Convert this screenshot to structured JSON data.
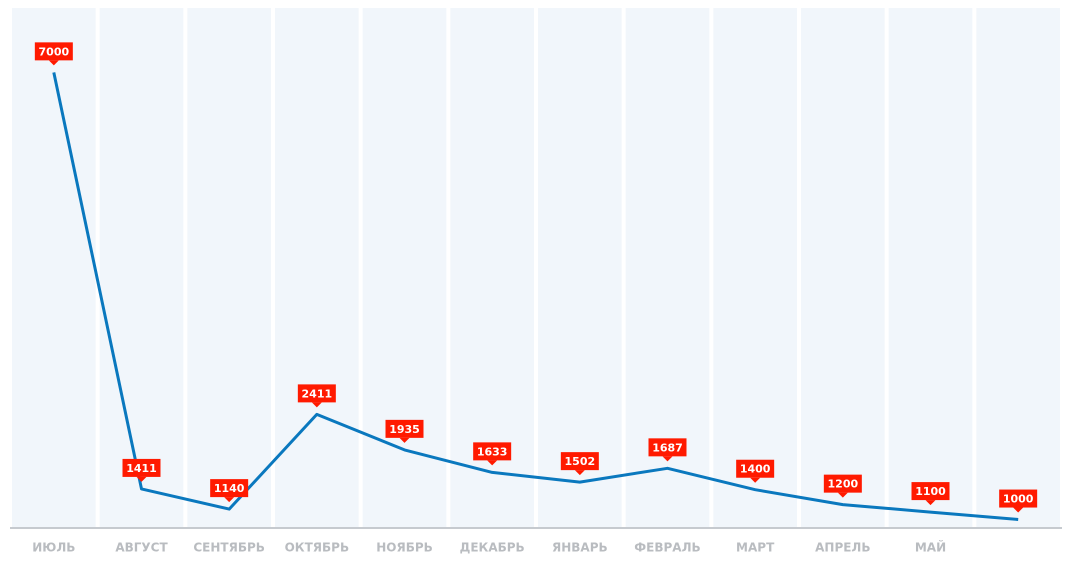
{
  "chart_data": {
    "type": "line",
    "categories": [
      "ИЮЛЬ",
      "АВГУСТ",
      "СЕНТЯБРЬ",
      "ОКТЯБРЬ",
      "НОЯБРЬ",
      "ДЕКАБРЬ",
      "ЯНВАРЬ",
      "ФЕВРАЛЬ",
      "МАРТ",
      "АПРЕЛЬ",
      "МАЙ",
      null
    ],
    "values": [
      7000,
      1411,
      1140,
      2411,
      1935,
      1633,
      1502,
      1687,
      1400,
      1200,
      1100,
      1000
    ],
    "color": "#0a78be",
    "label_color": "#ff1a00",
    "band_color": "#f1f6fb",
    "ylim": [
      900,
      7300
    ]
  }
}
